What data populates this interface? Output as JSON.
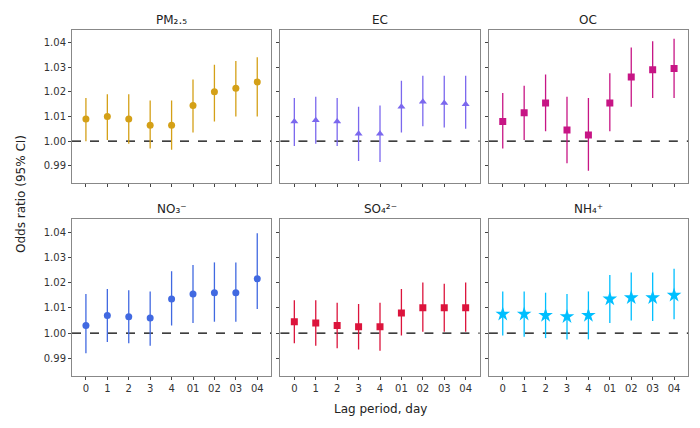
{
  "chart_data": [
    {
      "type": "scatter",
      "title": "PM₂.₅",
      "categories": [
        "0",
        "1",
        "2",
        "3",
        "4",
        "01",
        "02",
        "03",
        "04"
      ],
      "values": [
        1.009,
        1.01,
        1.009,
        1.0065,
        1.0065,
        1.0145,
        1.02,
        1.0215,
        1.024
      ],
      "ci_low": [
        1.0,
        1.0005,
        0.999,
        0.997,
        0.9965,
        1.0035,
        1.008,
        1.01,
        1.01
      ],
      "ci_high": [
        1.0175,
        1.019,
        1.019,
        1.0165,
        1.0165,
        1.025,
        1.031,
        1.0325,
        1.034
      ],
      "color": "#D4A017",
      "marker": "circle",
      "ylim": [
        0.983,
        1.045
      ],
      "yticks": [
        0.99,
        {
          "value": 1.0,
          "label": "1.00"
        },
        1.01,
        1.02,
        1.03,
        1.04
      ],
      "ref_line": 1.0,
      "grid": false,
      "tick_labels": "y",
      "ylabel": "Odds ratio (95% CI)"
    },
    {
      "type": "scatter",
      "title": "EC",
      "categories": [
        "0",
        "1",
        "2",
        "3",
        "4",
        "01",
        "02",
        "03",
        "04"
      ],
      "values": [
        1.008,
        1.0085,
        1.008,
        1.003,
        1.003,
        1.014,
        1.016,
        1.0155,
        1.015
      ],
      "ci_low": [
        0.998,
        0.999,
        0.998,
        0.992,
        0.9915,
        1.0035,
        1.006,
        1.0055,
        1.005
      ],
      "ci_high": [
        1.0175,
        1.018,
        1.0175,
        1.014,
        1.0145,
        1.0245,
        1.0265,
        1.0265,
        1.0265
      ],
      "color": "#7B68EE",
      "marker": "triangle",
      "ylim": [
        0.983,
        1.045
      ],
      "yticks": [
        0.99,
        {
          "value": 1.0,
          "label": "1.00"
        },
        1.01,
        1.02,
        1.03,
        1.04
      ],
      "ref_line": 1.0,
      "grid": false,
      "tick_labels": false
    },
    {
      "type": "scatter",
      "title": "OC",
      "categories": [
        "0",
        "1",
        "2",
        "3",
        "4",
        "01",
        "02",
        "03",
        "04"
      ],
      "values": [
        1.008,
        1.0115,
        1.0155,
        1.0045,
        1.0025,
        1.0155,
        1.026,
        1.029,
        1.0295
      ],
      "ci_low": [
        0.997,
        1.0005,
        1.004,
        0.991,
        0.988,
        1.004,
        1.014,
        1.0175,
        1.0175
      ],
      "ci_high": [
        1.0195,
        1.0225,
        1.027,
        1.018,
        1.0175,
        1.0275,
        1.038,
        1.0405,
        1.0415
      ],
      "color": "#C71585",
      "marker": "square",
      "ylim": [
        0.983,
        1.045
      ],
      "yticks": [
        0.99,
        {
          "value": 1.0,
          "label": "1.00"
        },
        1.01,
        1.02,
        1.03,
        1.04
      ],
      "ref_line": 1.0,
      "grid": false,
      "tick_labels": false
    },
    {
      "type": "scatter",
      "title": "NO₃⁻",
      "categories": [
        "0",
        "1",
        "2",
        "3",
        "4",
        "01",
        "02",
        "03",
        "04"
      ],
      "values": [
        1.003,
        1.007,
        1.0065,
        1.006,
        1.0135,
        1.0155,
        1.016,
        1.016,
        1.0215
      ],
      "ci_low": [
        0.992,
        0.9965,
        0.996,
        0.995,
        1.003,
        1.004,
        1.0045,
        1.0045,
        1.0095
      ],
      "ci_high": [
        1.0155,
        1.0175,
        1.017,
        1.0165,
        1.0245,
        1.027,
        1.028,
        1.028,
        1.0395
      ],
      "color": "#4169E1",
      "marker": "circle",
      "ylim": [
        0.983,
        1.045
      ],
      "yticks": [
        0.99,
        {
          "value": 1.0,
          "label": "1.00"
        },
        1.01,
        1.02,
        1.03,
        1.04
      ],
      "ref_line": 1.0,
      "grid": false
    },
    {
      "type": "scatter",
      "title": "SO₄²⁻",
      "categories": [
        "0",
        "1",
        "2",
        "3",
        "4",
        "01",
        "02",
        "03",
        "04"
      ],
      "values": [
        1.0045,
        1.004,
        1.003,
        1.0025,
        1.0025,
        1.008,
        1.01,
        1.01,
        1.01
      ],
      "ci_low": [
        0.996,
        0.995,
        0.994,
        0.9935,
        0.993,
        0.999,
        1.0005,
        1.0005,
        1.0005
      ],
      "ci_high": [
        1.013,
        1.013,
        1.012,
        1.0115,
        1.012,
        1.0175,
        1.02,
        1.0195,
        1.02
      ],
      "color": "#DC143C",
      "marker": "square",
      "ylim": [
        0.983,
        1.045
      ],
      "yticks": [
        0.99,
        {
          "value": 1.0,
          "label": "1.00"
        },
        1.01,
        1.02,
        1.03,
        1.04
      ],
      "ref_line": 1.0,
      "grid": false,
      "tick_labels": "x",
      "xlabel": "Lag period, day"
    },
    {
      "type": "scatter",
      "title": "NH₄⁺",
      "categories": [
        "0",
        "1",
        "2",
        "3",
        "4",
        "01",
        "02",
        "03",
        "04"
      ],
      "values": [
        1.0075,
        1.0075,
        1.007,
        1.0065,
        1.007,
        1.0135,
        1.014,
        1.014,
        1.015
      ],
      "ci_low": [
        0.999,
        0.9985,
        0.998,
        0.9975,
        0.9975,
        1.004,
        1.005,
        1.0048,
        1.0055
      ],
      "ci_high": [
        1.0165,
        1.0165,
        1.016,
        1.0155,
        1.0165,
        1.023,
        1.024,
        1.024,
        1.0255
      ],
      "color": "#00BFFF",
      "marker": "star",
      "ylim": [
        0.983,
        1.045
      ],
      "yticks": [
        0.99,
        {
          "value": 1.0,
          "label": "1.00"
        },
        1.01,
        1.02,
        1.03,
        1.04
      ],
      "ref_line": 1.0,
      "grid": false,
      "tick_labels": "x"
    }
  ]
}
